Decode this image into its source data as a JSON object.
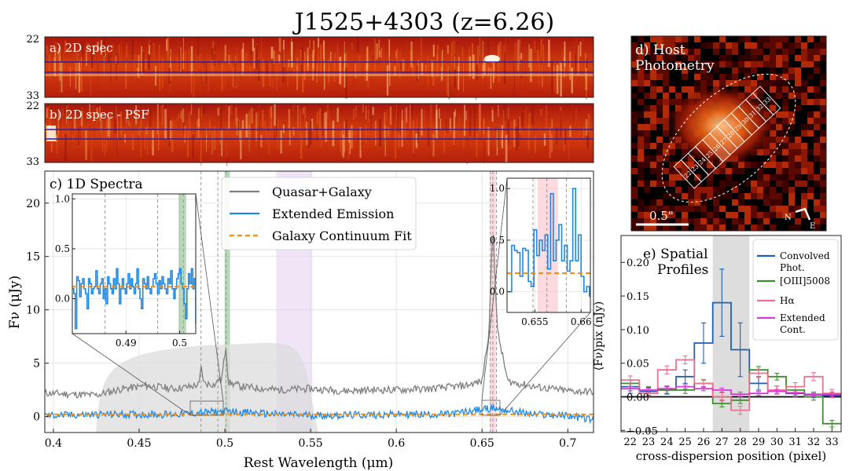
{
  "title": "J1525+4303 (z=6.26)",
  "panels": {
    "a": {
      "label": "a) 2D spec",
      "yticks": [
        "22",
        "33"
      ]
    },
    "b": {
      "label": "b) 2D spec - PSF",
      "yticks": [
        "22",
        "33"
      ]
    },
    "c": {
      "label": "c) 1D Spectra"
    },
    "d": {
      "label_line1": "d) Host",
      "label_line2": "Photometry",
      "scalebar": "0.5\"",
      "north": "N",
      "east": "E",
      "aperture_labels": [
        "22",
        "23",
        "24",
        "25",
        "26",
        "27",
        "28",
        "29",
        "30",
        "31",
        "32",
        "33"
      ]
    },
    "e": {
      "label_line1": "e) Spatial",
      "label_line2": "Profiles"
    }
  },
  "chart_data": [
    {
      "type": "line",
      "title": "c) 1D Spectra",
      "xlabel": "Rest Wavelength (μm)",
      "ylabel": "Fν (μJy)",
      "xlim": [
        0.395,
        0.715
      ],
      "ylim": [
        -1.5,
        23
      ],
      "xticks": [
        0.4,
        0.45,
        0.5,
        0.55,
        0.6,
        0.65,
        0.7
      ],
      "xtick_labels": [
        "0.4",
        "0.45",
        "0.5",
        "0.55",
        "0.6",
        "0.65",
        "0.7"
      ],
      "yticks": [
        0,
        5,
        10,
        15,
        20
      ],
      "ytick_labels": [
        "0",
        "5",
        "10",
        "15",
        "20"
      ],
      "grid": true,
      "legend_position": "top-center",
      "series": [
        {
          "name": "Quasar+Galaxy",
          "color": "#808080",
          "x": [
            0.396,
            0.41,
            0.425,
            0.44,
            0.455,
            0.47,
            0.48,
            0.485,
            0.4861,
            0.488,
            0.495,
            0.4959,
            0.498,
            0.5007,
            0.502,
            0.51,
            0.53,
            0.55,
            0.57,
            0.59,
            0.6,
            0.62,
            0.64,
            0.65,
            0.654,
            0.6563,
            0.659,
            0.665,
            0.68,
            0.7,
            0.715
          ],
          "values": [
            2.2,
            2.1,
            2.0,
            2.6,
            2.9,
            2.6,
            2.8,
            3.0,
            4.6,
            3.1,
            3.0,
            3.6,
            3.3,
            6.7,
            3.2,
            2.8,
            2.5,
            2.6,
            2.4,
            2.5,
            2.5,
            2.6,
            2.9,
            3.3,
            8.0,
            18.0,
            8.0,
            3.3,
            2.8,
            2.4,
            2.3
          ]
        },
        {
          "name": "Extended Emission",
          "color": "#1e88e5",
          "x": [
            0.396,
            0.43,
            0.47,
            0.5007,
            0.53,
            0.56,
            0.6,
            0.63,
            0.6563,
            0.68,
            0.7,
            0.715
          ],
          "values": [
            0.1,
            0.2,
            0.2,
            0.5,
            0.2,
            0.1,
            0.2,
            0.2,
            0.8,
            0.2,
            0.1,
            -0.3
          ]
        },
        {
          "name": "Galaxy Continuum Fit",
          "color": "#ff8c00",
          "style": "dashed",
          "x": [
            0.396,
            0.715
          ],
          "values": [
            0.2,
            0.2
          ]
        }
      ],
      "bands": [
        {
          "x0": 0.5,
          "x1": 0.503,
          "color": "#7fb77f"
        },
        {
          "x0": 0.53,
          "x1": 0.551,
          "color": "#e3cdf0"
        },
        {
          "x0": 0.6545,
          "x1": 0.658,
          "color": "#f7bcc7"
        }
      ],
      "vlines": [
        0.4861,
        0.4959,
        0.5007,
        0.6548,
        0.6563,
        0.6584
      ]
    },
    {
      "type": "line",
      "title": "inset left",
      "xlim": [
        0.48,
        0.503
      ],
      "ylim": [
        -0.35,
        1.05
      ],
      "xticks": [
        0.49,
        0.5
      ],
      "xtick_labels": [
        "0.49",
        "0.5"
      ],
      "yticks": [
        0.0,
        0.5,
        1.0
      ],
      "ytick_labels": [
        "0.0",
        "0.5",
        "1.0"
      ],
      "vlines": [
        0.4861,
        0.4959,
        0.5007
      ],
      "band": {
        "x0": 0.4998,
        "x1": 0.5012
      },
      "continuum": 0.12,
      "series_values": [
        0.1,
        0.05,
        -0.3,
        0.22,
        0.18,
        0.02,
        0.15,
        0.2,
        0.1,
        0.05,
        -0.1,
        0.2,
        0.15,
        0.05,
        0.1,
        0.12,
        0.28,
        0.1,
        0.05,
        0.15,
        0.2,
        0.0,
        0.1,
        -0.05,
        0.22,
        0.15,
        0.1,
        0.05,
        0.2,
        0.1,
        0.3,
        0.15,
        -0.05,
        0.1,
        0.2,
        0.1,
        0.05,
        0.15,
        0.25,
        0.1,
        0.2,
        0.12,
        0.05,
        0.15,
        0.3,
        0.1,
        0.0,
        -0.1,
        0.2,
        0.15,
        0.1,
        0.22,
        0.1,
        0.05,
        0.12,
        0.2,
        0.25,
        0.15,
        0.05,
        0.18,
        0.1,
        0.22,
        0.15,
        0.1,
        0.05,
        0.2,
        0.15,
        0.28,
        0.1,
        0.0,
        0.1,
        0.2,
        0.25,
        0.3,
        0.15,
        0.1,
        -0.05,
        -0.2,
        0.1,
        0.25,
        0.15,
        0.3,
        0.1,
        0.2,
        -0.25
      ]
    },
    {
      "type": "line",
      "title": "inset right",
      "xlim": [
        0.652,
        0.661
      ],
      "ylim": [
        -0.2,
        1.1
      ],
      "xticks": [
        0.655,
        0.66
      ],
      "xtick_labels": [
        "0.655",
        "0.66"
      ],
      "yticks": [
        0.0,
        0.5,
        1.0
      ],
      "ytick_labels": [
        "0.0",
        "0.5",
        "1.0"
      ],
      "vlines": [
        0.6548,
        0.6563,
        0.6584
      ],
      "band": {
        "x0": 0.6553,
        "x1": 0.6575
      },
      "continuum": 0.18,
      "series_x": [
        0.6522,
        0.6525,
        0.6528,
        0.6531,
        0.6534,
        0.6537,
        0.654,
        0.6543,
        0.6546,
        0.6549,
        0.6552,
        0.6555,
        0.6558,
        0.6561,
        0.6564,
        0.6567,
        0.657,
        0.6573,
        0.6576,
        0.6579,
        0.6582,
        0.6585,
        0.6588,
        0.6591,
        0.6594,
        0.6597,
        0.66,
        0.6603,
        0.6606,
        0.6609
      ],
      "series_values": [
        0.0,
        0.45,
        0.4,
        0.38,
        0.15,
        0.42,
        0.4,
        0.1,
        0.05,
        0.6,
        0.35,
        0.5,
        0.4,
        0.55,
        0.22,
        0.95,
        0.3,
        0.5,
        0.65,
        0.3,
        0.45,
        0.2,
        0.3,
        1.0,
        0.3,
        0.55,
        0.15,
        0.0,
        0.05,
        -0.05
      ]
    },
    {
      "type": "line",
      "title": "e) Spatial Profiles",
      "xlabel": "cross-dispersion position (pixel)",
      "ylabel": "⟨Fν⟩pix (nJy)",
      "xlim": [
        21.5,
        33.5
      ],
      "ylim": [
        -0.052,
        0.24
      ],
      "xticks": [
        22,
        23,
        24,
        25,
        26,
        27,
        28,
        29,
        30,
        31,
        32,
        33
      ],
      "yticks": [
        -0.05,
        0.0,
        0.05,
        0.1,
        0.15,
        0.2
      ],
      "ytick_labels": [
        "−0.05",
        "0.00",
        "0.05",
        "0.10",
        "0.15",
        "0.20"
      ],
      "shaded_range": [
        26.5,
        28.5
      ],
      "legend_position": "top-right",
      "series": [
        {
          "name": "Convolved Phot.",
          "color": "#1f5fb0",
          "x": [
            22,
            23,
            24,
            25,
            26,
            27,
            28,
            29,
            30,
            31,
            32,
            33
          ],
          "values": [
            0.015,
            0.008,
            0.01,
            0.03,
            0.08,
            0.14,
            0.07,
            0.02,
            0.01,
            0.005,
            0.003,
            0.002
          ],
          "errors": [
            0.01,
            0.006,
            0.006,
            0.01,
            0.03,
            0.05,
            0.04,
            0.01,
            0.006,
            0.005,
            0.004,
            0.003
          ]
        },
        {
          "name": "[OIII]5008",
          "color": "#3a8f2a",
          "x": [
            22,
            23,
            24,
            25,
            26,
            27,
            28,
            29,
            30,
            31,
            32,
            33
          ],
          "values": [
            0.02,
            0.01,
            0.01,
            0.01,
            0.02,
            -0.01,
            -0.005,
            0.04,
            0.03,
            0.01,
            0.0,
            -0.04
          ],
          "errors": [
            0.005,
            0.005,
            0.005,
            0.005,
            0.005,
            0.005,
            0.005,
            0.005,
            0.005,
            0.005,
            0.005,
            0.005
          ]
        },
        {
          "name": "Hα",
          "color": "#ee7090",
          "x": [
            22,
            23,
            24,
            25,
            26,
            27,
            28,
            29,
            30,
            31,
            32,
            33
          ],
          "values": [
            0.025,
            0.005,
            0.04,
            0.055,
            0.02,
            0.0,
            -0.02,
            0.035,
            0.01,
            0.015,
            0.03,
            0.005
          ],
          "errors": [
            0.006,
            0.006,
            0.006,
            0.006,
            0.006,
            0.006,
            0.006,
            0.006,
            0.006,
            0.006,
            0.006,
            0.006
          ]
        },
        {
          "name": "Extended Cont.",
          "color": "#d23cd2",
          "x": [
            22,
            23,
            24,
            25,
            26,
            27,
            28,
            29,
            30,
            31,
            32,
            33
          ],
          "values": [
            0.012,
            0.01,
            0.012,
            0.015,
            0.012,
            0.01,
            0.004,
            0.005,
            0.008,
            0.006,
            0.004,
            0.004
          ],
          "errors": [
            0.003,
            0.003,
            0.003,
            0.003,
            0.003,
            0.003,
            0.003,
            0.003,
            0.003,
            0.003,
            0.003,
            0.003
          ]
        }
      ],
      "hline": 0.0
    }
  ]
}
